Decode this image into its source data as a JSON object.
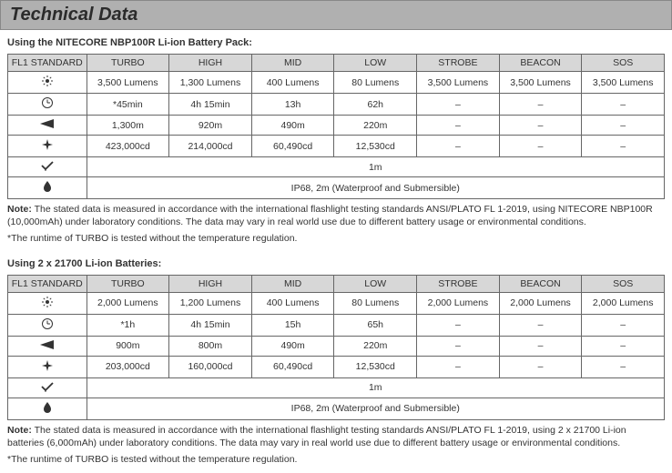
{
  "title": "Technical Data",
  "headers": [
    "FL1 STANDARD",
    "TURBO",
    "HIGH",
    "MID",
    "LOW",
    "STROBE",
    "BEACON",
    "SOS"
  ],
  "row_icons": [
    "light",
    "clock",
    "beam",
    "intensity",
    "impact",
    "water"
  ],
  "sections": [
    {
      "subtitle": "Using the NITECORE NBP100R Li-ion Battery Pack:",
      "rows": [
        [
          "3,500 Lumens",
          "1,300 Lumens",
          "400 Lumens",
          "80 Lumens",
          "3,500 Lumens",
          "3,500 Lumens",
          "3,500 Lumens"
        ],
        [
          "*45min",
          "4h 15min",
          "13h",
          "62h",
          "–",
          "–",
          "–"
        ],
        [
          "1,300m",
          "920m",
          "490m",
          "220m",
          "–",
          "–",
          "–"
        ],
        [
          "423,000cd",
          "214,000cd",
          "60,490cd",
          "12,530cd",
          "–",
          "–",
          "–"
        ]
      ],
      "span_rows": [
        "1m",
        "IP68, 2m (Waterproof and Submersible)"
      ],
      "note_bold": "Note:",
      "note_text": " The stated data is measured in accordance with the international flashlight testing standards ANSI/PLATO FL 1-2019, using NITECORE NBP100R (10,000mAh) under laboratory conditions. The data may vary in real world use due to different battery usage or environmental conditions.",
      "note_footnote": "*The runtime of TURBO is tested without the temperature regulation."
    },
    {
      "subtitle": "Using 2 x 21700 Li-ion Batteries:",
      "rows": [
        [
          "2,000 Lumens",
          "1,200 Lumens",
          "400 Lumens",
          "80 Lumens",
          "2,000 Lumens",
          "2,000 Lumens",
          "2,000 Lumens"
        ],
        [
          "*1h",
          "4h 15min",
          "15h",
          "65h",
          "–",
          "–",
          "–"
        ],
        [
          "900m",
          "800m",
          "490m",
          "220m",
          "–",
          "–",
          "–"
        ],
        [
          "203,000cd",
          "160,000cd",
          "60,490cd",
          "12,530cd",
          "–",
          "–",
          "–"
        ]
      ],
      "span_rows": [
        "1m",
        "IP68, 2m (Waterproof and Submersible)"
      ],
      "note_bold": "Note:",
      "note_text": " The stated data is measured in accordance with the international flashlight testing standards ANSI/PLATO FL 1-2019, using 2 x 21700 Li-ion batteries (6,000mAh) under laboratory conditions. The data may vary in real world use due to different battery usage or environmental conditions.",
      "note_footnote": "*The runtime of TURBO is tested without the temperature regulation."
    }
  ],
  "colors": {
    "title_bg": "#b0b0b0",
    "header_bg": "#d7d7d7",
    "border": "#666666",
    "text": "#333333"
  }
}
